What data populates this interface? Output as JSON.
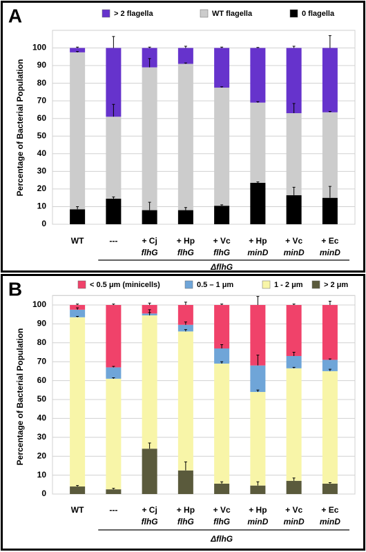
{
  "chart_data": [
    {
      "type": "stacked_bar",
      "panel_label": "A",
      "y_label": "Percentage of Bacterial Population",
      "categories": [
        "WT",
        "---",
        "+ Cj",
        "+ Hp",
        "+ Vc",
        "+ Hp",
        "+ Vc",
        "+ Ec"
      ],
      "category_sublabels": [
        null,
        null,
        "flhG",
        "flhG",
        "flhG",
        "minD",
        "minD",
        "minD"
      ],
      "group_label": "ΔflhG",
      "ylim": [
        0,
        110
      ],
      "yticks": [
        0,
        10,
        20,
        30,
        40,
        50,
        60,
        70,
        80,
        90,
        100
      ],
      "grid": true,
      "series": [
        {
          "name": "> 2 flagella",
          "color": "#6633cc",
          "values": [
            2.5,
            39,
            11,
            9,
            22.5,
            31,
            37,
            36.5
          ],
          "errors": [
            0.5,
            6.5,
            0.5,
            1,
            0.5,
            0.3,
            1,
            7
          ]
        },
        {
          "name": "WT flagella",
          "color": "#cccccc",
          "values": [
            89,
            46.5,
            81,
            83,
            67,
            45.5,
            46.5,
            48.5
          ],
          "errors": [
            0.5,
            7,
            5,
            0.5,
            0.5,
            0.5,
            5.5,
            0.5
          ]
        },
        {
          "name": "0 flagella",
          "color": "#000000",
          "values": [
            8.5,
            14.5,
            8,
            8,
            10.5,
            23.5,
            16.5,
            15
          ],
          "errors": [
            1.5,
            1,
            4.5,
            1.5,
            0.5,
            0.5,
            4.5,
            6.5
          ]
        }
      ]
    },
    {
      "type": "stacked_bar",
      "panel_label": "B",
      "y_label": "Percentage of Bacterial Population",
      "categories": [
        "WT",
        "---",
        "+ Cj",
        "+ Hp",
        "+ Vc",
        "+ Hp",
        "+ Vc",
        "+ Ec"
      ],
      "category_sublabels": [
        null,
        null,
        "flhG",
        "flhG",
        "flhG",
        "minD",
        "minD",
        "minD"
      ],
      "group_label": "ΔflhG",
      "ylim": [
        0,
        105
      ],
      "yticks": [
        0,
        10,
        20,
        30,
        40,
        50,
        60,
        70,
        80,
        90,
        100
      ],
      "grid": true,
      "series": [
        {
          "name": "< 0.5 μm (minicells)",
          "color": "#f0426a",
          "values": [
            2.5,
            33,
            4.5,
            10.5,
            23,
            32,
            27,
            29
          ],
          "errors": [
            0.5,
            0.5,
            1,
            1.5,
            0.5,
            4.5,
            0.5,
            2
          ]
        },
        {
          "name": "0.5 – 1 μm",
          "color": "#6fa5d8",
          "values": [
            4,
            6,
            1,
            3.5,
            8,
            14,
            6.5,
            6
          ],
          "errors": [
            1,
            0.5,
            0.5,
            1.5,
            2,
            5.5,
            2,
            0.5
          ]
        },
        {
          "name": "1 - 2 μm",
          "color": "#f8f5a8",
          "values": [
            89.5,
            58.5,
            70.5,
            73.5,
            63.5,
            49.5,
            59.5,
            59.5
          ],
          "errors": [
            0.5,
            0.5,
            3,
            1,
            1,
            1,
            0.5,
            1
          ]
        },
        {
          "name": "> 2 μm",
          "color": "#5a5a3c",
          "values": [
            4,
            2.5,
            24,
            12.5,
            5.5,
            4.5,
            7,
            5.5
          ],
          "errors": [
            0.5,
            0.5,
            3,
            4.5,
            1,
            2,
            1.5,
            0.5
          ]
        }
      ]
    }
  ]
}
